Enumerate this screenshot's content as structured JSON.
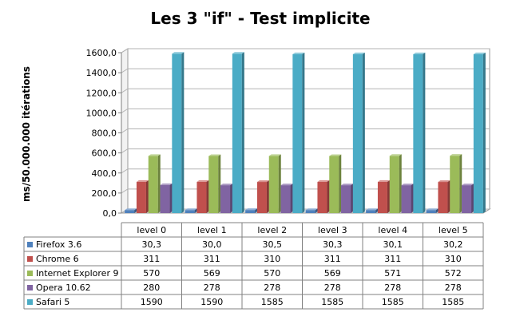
{
  "chart_data": {
    "type": "bar",
    "title": "Les 3 \"if\" - Test implicite",
    "ylabel": "ms/50.000.000 itérations",
    "xlabel": "",
    "ylim": [
      0,
      1600
    ],
    "y_ticks": [
      "0,0",
      "200,0",
      "400,0",
      "600,0",
      "800,0",
      "1000,0",
      "1200,0",
      "1400,0",
      "1600,0"
    ],
    "grid": true,
    "legend_placement": "data-table-left",
    "categories": [
      "level 0",
      "level 1",
      "level 2",
      "level 3",
      "level 4",
      "level 5"
    ],
    "series": [
      {
        "name": "Firefox 3.6",
        "color": "#4f81bd",
        "values": [
          30.3,
          30.0,
          30.5,
          30.3,
          30.1,
          30.2
        ],
        "labels": [
          "30,3",
          "30,0",
          "30,5",
          "30,3",
          "30,1",
          "30,2"
        ]
      },
      {
        "name": "Chrome 6",
        "color": "#c0504d",
        "values": [
          311,
          311,
          310,
          311,
          311,
          310
        ],
        "labels": [
          "311",
          "311",
          "310",
          "311",
          "311",
          "310"
        ]
      },
      {
        "name": "Internet Explorer 9",
        "color": "#9bbb59",
        "values": [
          570,
          569,
          570,
          569,
          571,
          572
        ],
        "labels": [
          "570",
          "569",
          "570",
          "569",
          "571",
          "572"
        ]
      },
      {
        "name": "Opera 10.62",
        "color": "#8064a2",
        "values": [
          280,
          278,
          278,
          278,
          278,
          278
        ],
        "labels": [
          "280",
          "278",
          "278",
          "278",
          "278",
          "278"
        ]
      },
      {
        "name": "Safari 5",
        "color": "#4bacc6",
        "values": [
          1590,
          1590,
          1585,
          1585,
          1585,
          1585
        ],
        "labels": [
          "1590",
          "1590",
          "1585",
          "1585",
          "1585",
          "1585"
        ]
      }
    ]
  }
}
